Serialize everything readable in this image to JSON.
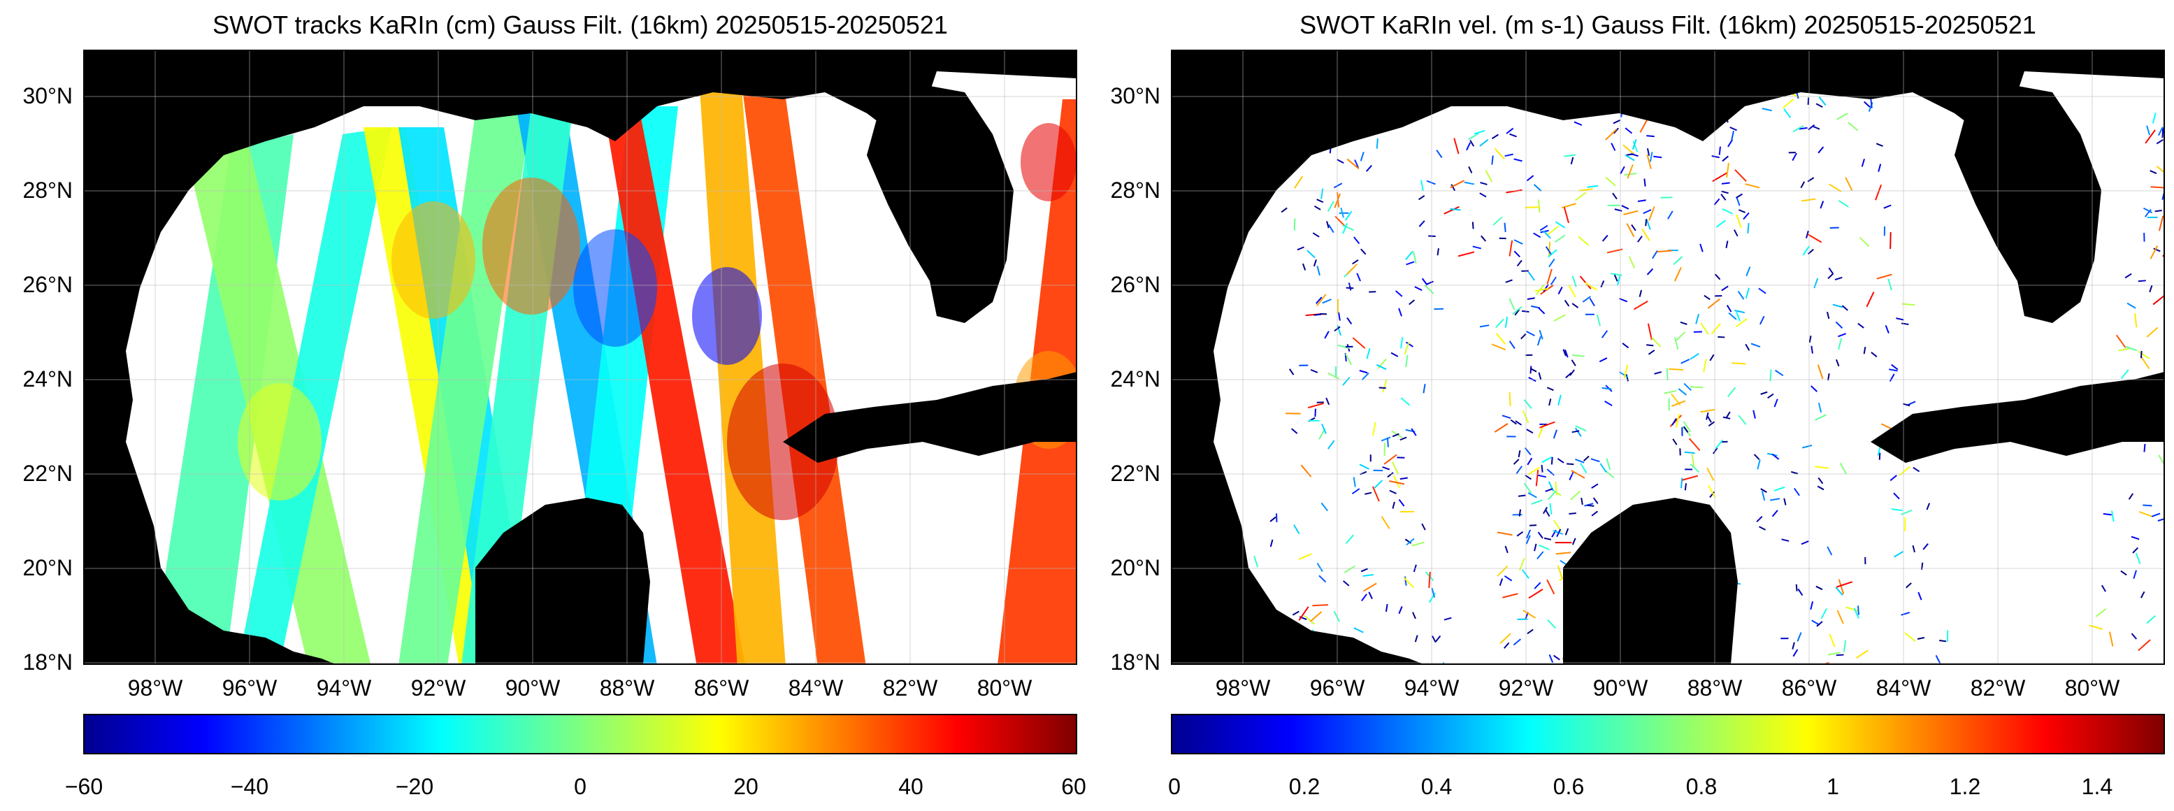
{
  "panels": [
    {
      "id": "ssh",
      "title": "SWOT tracks KaRIn (cm) Gauss Filt. (16km) 20250515-20250521",
      "lon_labels": [
        "98°W",
        "96°W",
        "94°W",
        "92°W",
        "90°W",
        "88°W",
        "86°W",
        "84°W",
        "82°W",
        "80°W"
      ],
      "lat_labels": [
        "30°N",
        "28°N",
        "26°N",
        "24°N",
        "22°N",
        "20°N",
        "18°N"
      ],
      "colorbar_ticks": [
        "−60",
        "−40",
        "−20",
        "0",
        "20",
        "40",
        "60"
      ],
      "colormap": "jet",
      "field_type": "swath-color",
      "extent": {
        "lon_min": -99.0,
        "lon_max": -78.0,
        "lat_min": 18.0,
        "lat_max": 31.0
      }
    },
    {
      "id": "vel",
      "title": "SWOT KaRIn vel. (m s-1) Gauss Filt. (16km) 20250515-20250521",
      "lon_labels": [
        "98°W",
        "96°W",
        "94°W",
        "92°W",
        "90°W",
        "88°W",
        "86°W",
        "84°W",
        "82°W",
        "80°W"
      ],
      "lat_labels": [
        "30°N",
        "28°N",
        "26°N",
        "24°N",
        "22°N",
        "20°N",
        "18°N"
      ],
      "colorbar_ticks": [
        "0",
        "0.2",
        "0.4",
        "0.6",
        "0.8",
        "1",
        "1.2",
        "1.4"
      ],
      "colormap": "jet",
      "field_type": "quiver",
      "extent": {
        "lon_min": -99.0,
        "lon_max": -78.0,
        "lat_min": 18.0,
        "lat_max": 31.0
      }
    }
  ],
  "colors": {
    "land": "#000000",
    "ocean": "#ffffff",
    "grid": "#bbbbbb"
  }
}
